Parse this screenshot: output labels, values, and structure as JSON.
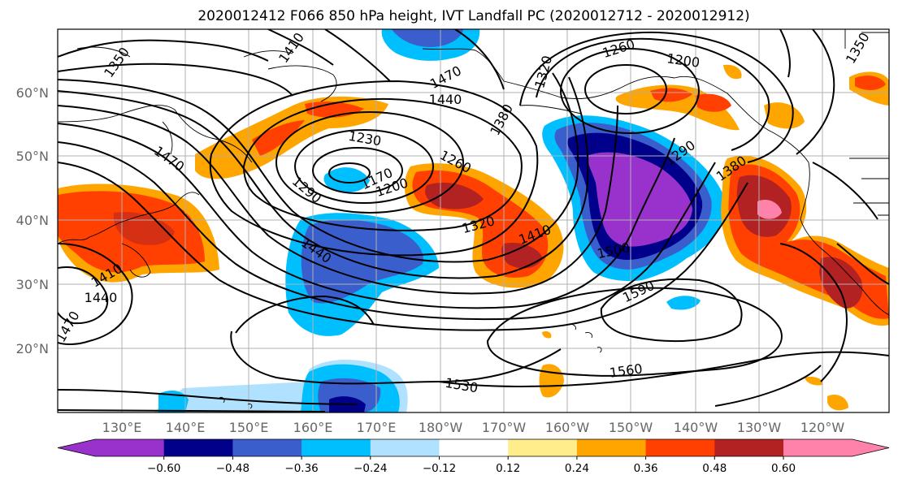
{
  "title": "2020012412 F066 850 hPa height, IVT Landfall PC (2020012712 - 2020012912)",
  "lat_labels": [
    "60°N",
    "50°N",
    "40°N",
    "30°N",
    "20°N"
  ],
  "lon_labels": [
    "130°E",
    "140°E",
    "150°E",
    "160°E",
    "170°E",
    "180°W",
    "170°W",
    "160°W",
    "150°W",
    "140°W",
    "130°W",
    "120°W"
  ],
  "colorbar": {
    "ticks": [
      "−0.60",
      "−0.48",
      "−0.36",
      "−0.24",
      "−0.12",
      "0.12",
      "0.24",
      "0.36",
      "0.48",
      "0.60"
    ],
    "colors": [
      "#9932cc",
      "#00008b",
      "#3a5fcd",
      "#00bfff",
      "#b0e2ff",
      "#ffffff",
      "#ffec8b",
      "#ffa500",
      "#ff4000",
      "#b22222",
      "#ff82ab"
    ]
  },
  "contour_labels": [
    "1350",
    "1410",
    "1470",
    "1440",
    "1380",
    "1320",
    "1260",
    "1200",
    "1230",
    "1170",
    "1290",
    "1470",
    "1200",
    "1260",
    "1290",
    "1380",
    "1320",
    "1410",
    "1500",
    "1590",
    "1440",
    "1410",
    "1440",
    "1470",
    "1560",
    "1530",
    "1380",
    "1350"
  ]
}
